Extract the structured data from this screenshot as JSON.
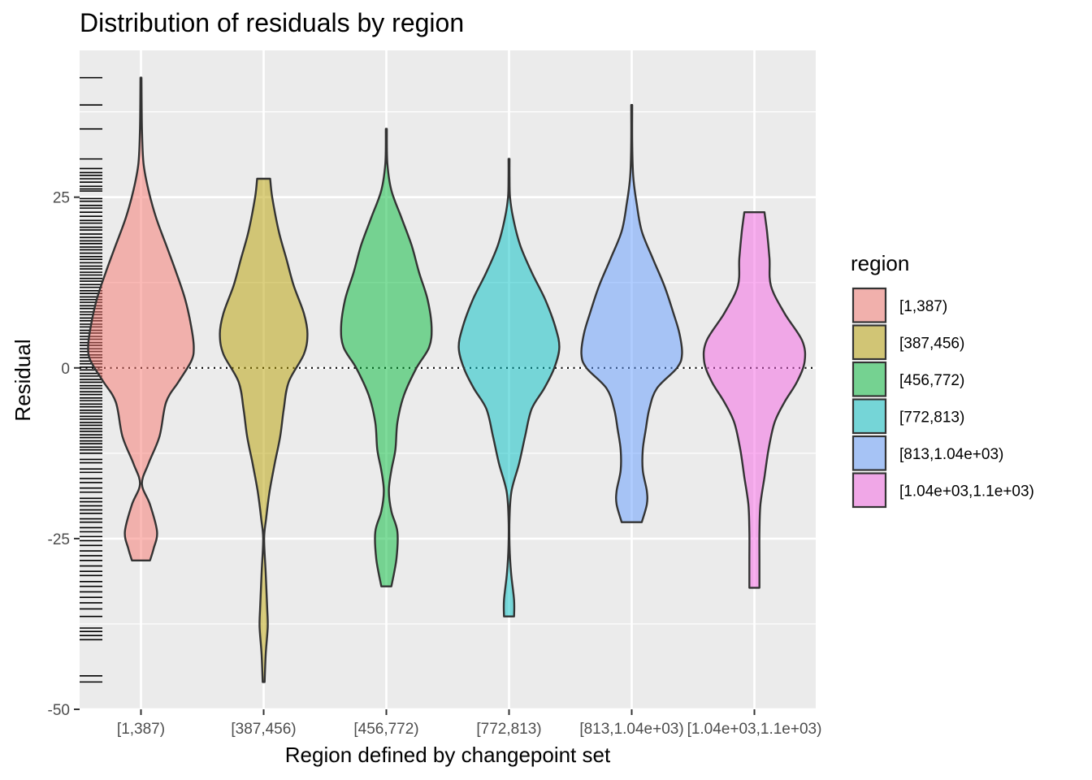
{
  "chart_data": {
    "type": "violin",
    "title": "Distribution of residuals by region",
    "xlabel": "Region defined by changepoint set",
    "ylabel": "Residual",
    "ylim": [
      -50,
      46.5
    ],
    "y_ticks": [
      -50,
      -25,
      0,
      25
    ],
    "y_tick_labels": [
      "-50",
      "-25",
      "0",
      "25"
    ],
    "reference_line": {
      "y": 0,
      "style": "dotted"
    },
    "grid": true,
    "legend": {
      "title": "region",
      "position": "right",
      "entries": [
        "[1,387)",
        "[387,456)",
        "[456,772)",
        "[772,813)",
        "[813,1.04e+03)",
        "[1.04e+03,1.1e+03)"
      ]
    },
    "categories": [
      "[1,387)",
      "[387,456)",
      "[456,772)",
      "[772,813)",
      "[813,1.04e+03)",
      "[1.04e+03,1.1e+03)"
    ],
    "colors": [
      "#F8766D",
      "#B79F00",
      "#00BA38",
      "#00BFC4",
      "#619CFF",
      "#F564E3"
    ],
    "series": [
      {
        "name": "[1,387)",
        "min": -28.2,
        "max": 42.5,
        "profile": [
          [
            42.5,
            0.01
          ],
          [
            35,
            0.02
          ],
          [
            30,
            0.05
          ],
          [
            26,
            0.15
          ],
          [
            22,
            0.3
          ],
          [
            18,
            0.5
          ],
          [
            14,
            0.7
          ],
          [
            10,
            0.88
          ],
          [
            6,
            1.0
          ],
          [
            3,
            1.05
          ],
          [
            1,
            1.0
          ],
          [
            -2,
            0.75
          ],
          [
            -5,
            0.5
          ],
          [
            -10,
            0.37
          ],
          [
            -14,
            0.15
          ],
          [
            -17,
            0.02
          ],
          [
            -20,
            0.18
          ],
          [
            -24,
            0.32
          ],
          [
            -26.5,
            0.25
          ],
          [
            -28.2,
            0.18
          ]
        ]
      },
      {
        "name": "[387,456)",
        "min": -46,
        "max": 27.7,
        "profile": [
          [
            27.7,
            0.13
          ],
          [
            25,
            0.17
          ],
          [
            20,
            0.3
          ],
          [
            16,
            0.45
          ],
          [
            12,
            0.6
          ],
          [
            8,
            0.8
          ],
          [
            5,
            0.87
          ],
          [
            2,
            0.8
          ],
          [
            -2,
            0.5
          ],
          [
            -6,
            0.4
          ],
          [
            -10,
            0.33
          ],
          [
            -14,
            0.22
          ],
          [
            -18,
            0.12
          ],
          [
            -22,
            0.05
          ],
          [
            -25,
            0.01
          ],
          [
            -30,
            0.04
          ],
          [
            -35,
            0.07
          ],
          [
            -38,
            0.08
          ],
          [
            -42,
            0.04
          ],
          [
            -46,
            0.02
          ]
        ]
      },
      {
        "name": "[456,772)",
        "min": -32,
        "max": 35,
        "profile": [
          [
            35,
            0.01
          ],
          [
            30,
            0.02
          ],
          [
            26,
            0.1
          ],
          [
            22,
            0.3
          ],
          [
            18,
            0.5
          ],
          [
            14,
            0.65
          ],
          [
            10,
            0.82
          ],
          [
            6,
            0.9
          ],
          [
            3,
            0.85
          ],
          [
            0,
            0.6
          ],
          [
            -4,
            0.35
          ],
          [
            -8,
            0.22
          ],
          [
            -12,
            0.18
          ],
          [
            -15,
            0.1
          ],
          [
            -18,
            0.05
          ],
          [
            -21,
            0.1
          ],
          [
            -24,
            0.22
          ],
          [
            -28,
            0.2
          ],
          [
            -32,
            0.1
          ]
        ]
      },
      {
        "name": "[772,813)",
        "min": -36.4,
        "max": 30.6,
        "profile": [
          [
            30.6,
            0.01
          ],
          [
            28,
            0.01
          ],
          [
            25,
            0.02
          ],
          [
            22,
            0.08
          ],
          [
            18,
            0.22
          ],
          [
            14,
            0.45
          ],
          [
            10,
            0.72
          ],
          [
            6,
            0.92
          ],
          [
            3,
            1.0
          ],
          [
            0,
            0.9
          ],
          [
            -3,
            0.7
          ],
          [
            -6,
            0.45
          ],
          [
            -10,
            0.32
          ],
          [
            -14,
            0.2
          ],
          [
            -18,
            0.05
          ],
          [
            -22,
            0.01
          ],
          [
            -26,
            0.01
          ],
          [
            -30,
            0.04
          ],
          [
            -34,
            0.1
          ],
          [
            -36.4,
            0.1
          ]
        ]
      },
      {
        "name": "[813,1.04e+03)",
        "min": -22.6,
        "max": 38.5,
        "profile": [
          [
            38.5,
            0.01
          ],
          [
            33,
            0.01
          ],
          [
            28,
            0.03
          ],
          [
            24,
            0.1
          ],
          [
            20,
            0.2
          ],
          [
            16,
            0.42
          ],
          [
            12,
            0.65
          ],
          [
            8,
            0.83
          ],
          [
            5,
            0.95
          ],
          [
            2,
            1.0
          ],
          [
            0,
            0.9
          ],
          [
            -3,
            0.5
          ],
          [
            -6,
            0.35
          ],
          [
            -9,
            0.28
          ],
          [
            -12,
            0.22
          ],
          [
            -15,
            0.22
          ],
          [
            -18,
            0.3
          ],
          [
            -20,
            0.3
          ],
          [
            -22.6,
            0.2
          ]
        ]
      },
      {
        "name": "[1.04e+03,1.1e+03)",
        "min": -32.2,
        "max": 22.8,
        "profile": [
          [
            22.8,
            0.2
          ],
          [
            20,
            0.25
          ],
          [
            16,
            0.3
          ],
          [
            12,
            0.33
          ],
          [
            8,
            0.6
          ],
          [
            4,
            0.95
          ],
          [
            1,
            1.0
          ],
          [
            -2,
            0.85
          ],
          [
            -5,
            0.6
          ],
          [
            -8,
            0.4
          ],
          [
            -12,
            0.28
          ],
          [
            -16,
            0.2
          ],
          [
            -20,
            0.12
          ],
          [
            -24,
            0.1
          ],
          [
            -28,
            0.1
          ],
          [
            -32.2,
            0.1
          ]
        ]
      }
    ],
    "rug_y": [
      42.5,
      38.5,
      35,
      30.6,
      29.2,
      28.6,
      28.2,
      27.7,
      27.2,
      26.6,
      26.2,
      25.9,
      24.8,
      24.4,
      23.8,
      23.4,
      22.8,
      22.2,
      21.6,
      21.2,
      20.6,
      20.2,
      19.6,
      19.1,
      18.6,
      18.2,
      17.7,
      17.3,
      16.8,
      16.3,
      15.9,
      15.4,
      14.9,
      14.5,
      14.0,
      13.6,
      13.1,
      12.7,
      12.2,
      11.8,
      11.3,
      10.9,
      10.4,
      10.0,
      9.6,
      9.1,
      8.7,
      8.2,
      7.8,
      7.3,
      6.9,
      6.4,
      6.0,
      5.5,
      5.1,
      4.6,
      4.2,
      3.7,
      3.3,
      2.8,
      2.4,
      1.9,
      1.5,
      1.0,
      0.6,
      0.1,
      -0.3,
      -0.8,
      -1.2,
      -1.7,
      -2.1,
      -2.6,
      -3.0,
      -3.5,
      -3.9,
      -4.4,
      -4.8,
      -5.3,
      -5.7,
      -6.2,
      -6.6,
      -7.1,
      -7.5,
      -8.0,
      -8.4,
      -8.9,
      -9.3,
      -9.8,
      -10.2,
      -10.7,
      -11.1,
      -11.6,
      -12.0,
      -12.5,
      -13.4,
      -13.9,
      -14.8,
      -15.3,
      -16.2,
      -16.8,
      -17.6,
      -18.2,
      -19.1,
      -19.6,
      -20.2,
      -20.8,
      -21.3,
      -22.1,
      -22.6,
      -23.4,
      -24.0,
      -24.7,
      -25.3,
      -26.0,
      -26.8,
      -27.5,
      -28.2,
      -29.0,
      -29.8,
      -30.4,
      -31.3,
      -32.0,
      -32.8,
      -33.6,
      -34.4,
      -35.3,
      -36.4,
      -38.1,
      -38.6,
      -39.2,
      -39.8,
      -45.1,
      -46.0
    ]
  }
}
